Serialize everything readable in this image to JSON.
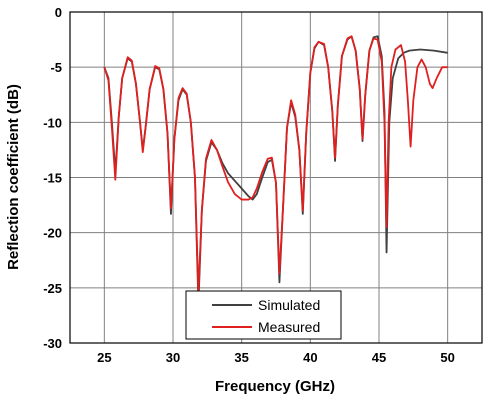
{
  "chart_data": {
    "type": "line",
    "xlabel": "Frequency (GHz)",
    "ylabel": "Reflection coefficient (dB)",
    "xlim": [
      22.5,
      52.5
    ],
    "ylim": [
      -30,
      0
    ],
    "xticks": [
      25,
      30,
      35,
      40,
      45,
      50
    ],
    "yticks": [
      0,
      -5,
      -10,
      -15,
      -20,
      -25,
      -30
    ],
    "grid": true,
    "legend_position": "bottom-center",
    "series": [
      {
        "name": "Simulated",
        "color": "#404040",
        "points": [
          [
            25.0,
            -5.0
          ],
          [
            25.3,
            -6.0
          ],
          [
            25.55,
            -10.0
          ],
          [
            25.8,
            -14.5
          ],
          [
            26.05,
            -9.5
          ],
          [
            26.3,
            -6.0
          ],
          [
            26.7,
            -4.2
          ],
          [
            27.0,
            -4.5
          ],
          [
            27.3,
            -6.5
          ],
          [
            27.6,
            -10.0
          ],
          [
            27.8,
            -12.5
          ],
          [
            28.0,
            -10.5
          ],
          [
            28.3,
            -7.0
          ],
          [
            28.7,
            -5.0
          ],
          [
            29.0,
            -5.2
          ],
          [
            29.3,
            -7.0
          ],
          [
            29.6,
            -11.0
          ],
          [
            29.85,
            -18.3
          ],
          [
            30.1,
            -11.5
          ],
          [
            30.4,
            -8.0
          ],
          [
            30.7,
            -7.0
          ],
          [
            31.0,
            -7.5
          ],
          [
            31.3,
            -10.0
          ],
          [
            31.6,
            -15.0
          ],
          [
            31.85,
            -26.5
          ],
          [
            32.1,
            -18.0
          ],
          [
            32.4,
            -13.5
          ],
          [
            32.8,
            -11.8
          ],
          [
            33.2,
            -12.5
          ],
          [
            33.6,
            -13.7
          ],
          [
            34.0,
            -14.6
          ],
          [
            34.5,
            -15.3
          ],
          [
            35.0,
            -16.0
          ],
          [
            35.5,
            -16.7
          ],
          [
            35.8,
            -17.0
          ],
          [
            36.1,
            -16.5
          ],
          [
            36.5,
            -15.0
          ],
          [
            36.9,
            -13.6
          ],
          [
            37.2,
            -13.4
          ],
          [
            37.5,
            -15.5
          ],
          [
            37.75,
            -24.5
          ],
          [
            38.0,
            -18.0
          ],
          [
            38.3,
            -10.5
          ],
          [
            38.6,
            -8.2
          ],
          [
            38.9,
            -9.5
          ],
          [
            39.2,
            -12.5
          ],
          [
            39.45,
            -18.3
          ],
          [
            39.7,
            -11.0
          ],
          [
            40.0,
            -5.5
          ],
          [
            40.3,
            -3.3
          ],
          [
            40.6,
            -2.7
          ],
          [
            41.0,
            -3.0
          ],
          [
            41.3,
            -5.0
          ],
          [
            41.6,
            -9.0
          ],
          [
            41.8,
            -13.5
          ],
          [
            42.0,
            -8.5
          ],
          [
            42.3,
            -4.0
          ],
          [
            42.7,
            -2.5
          ],
          [
            43.0,
            -2.2
          ],
          [
            43.3,
            -3.5
          ],
          [
            43.6,
            -7.0
          ],
          [
            43.8,
            -11.7
          ],
          [
            44.0,
            -7.5
          ],
          [
            44.3,
            -3.5
          ],
          [
            44.6,
            -2.3
          ],
          [
            44.9,
            -2.2
          ],
          [
            45.2,
            -4.0
          ],
          [
            45.4,
            -9.0
          ],
          [
            45.55,
            -21.8
          ],
          [
            45.75,
            -10.0
          ],
          [
            46.0,
            -6.0
          ],
          [
            46.4,
            -4.2
          ],
          [
            46.8,
            -3.7
          ],
          [
            47.2,
            -3.5
          ],
          [
            48.0,
            -3.4
          ],
          [
            49.0,
            -3.5
          ],
          [
            50.0,
            -3.7
          ]
        ]
      },
      {
        "name": "Measured",
        "color": "#e02020",
        "points": [
          [
            25.0,
            -5.0
          ],
          [
            25.3,
            -6.2
          ],
          [
            25.55,
            -10.5
          ],
          [
            25.8,
            -15.2
          ],
          [
            26.05,
            -9.5
          ],
          [
            26.3,
            -6.0
          ],
          [
            26.7,
            -4.1
          ],
          [
            27.0,
            -4.4
          ],
          [
            27.3,
            -6.5
          ],
          [
            27.6,
            -10.0
          ],
          [
            27.8,
            -12.7
          ],
          [
            28.0,
            -10.5
          ],
          [
            28.3,
            -7.0
          ],
          [
            28.7,
            -4.9
          ],
          [
            29.0,
            -5.1
          ],
          [
            29.3,
            -7.0
          ],
          [
            29.6,
            -11.0
          ],
          [
            29.85,
            -17.8
          ],
          [
            30.1,
            -11.5
          ],
          [
            30.4,
            -7.8
          ],
          [
            30.7,
            -6.9
          ],
          [
            31.0,
            -7.4
          ],
          [
            31.3,
            -10.0
          ],
          [
            31.6,
            -15.0
          ],
          [
            31.85,
            -25.5
          ],
          [
            32.1,
            -18.0
          ],
          [
            32.4,
            -13.3
          ],
          [
            32.8,
            -11.6
          ],
          [
            33.2,
            -12.5
          ],
          [
            33.6,
            -14.0
          ],
          [
            34.0,
            -15.4
          ],
          [
            34.5,
            -16.5
          ],
          [
            35.0,
            -17.0
          ],
          [
            35.5,
            -17.0
          ],
          [
            35.8,
            -16.8
          ],
          [
            36.1,
            -16.0
          ],
          [
            36.5,
            -14.5
          ],
          [
            36.9,
            -13.3
          ],
          [
            37.2,
            -13.2
          ],
          [
            37.5,
            -15.5
          ],
          [
            37.75,
            -23.7
          ],
          [
            38.0,
            -18.0
          ],
          [
            38.3,
            -10.5
          ],
          [
            38.6,
            -8.0
          ],
          [
            38.9,
            -9.3
          ],
          [
            39.2,
            -12.5
          ],
          [
            39.45,
            -18.0
          ],
          [
            39.7,
            -11.0
          ],
          [
            40.0,
            -5.5
          ],
          [
            40.3,
            -3.2
          ],
          [
            40.6,
            -2.7
          ],
          [
            41.0,
            -2.9
          ],
          [
            41.3,
            -5.0
          ],
          [
            41.6,
            -9.0
          ],
          [
            41.8,
            -13.2
          ],
          [
            42.0,
            -8.5
          ],
          [
            42.3,
            -4.0
          ],
          [
            42.7,
            -2.4
          ],
          [
            43.0,
            -2.2
          ],
          [
            43.3,
            -3.5
          ],
          [
            43.6,
            -7.0
          ],
          [
            43.8,
            -11.5
          ],
          [
            44.0,
            -7.5
          ],
          [
            44.3,
            -3.5
          ],
          [
            44.6,
            -2.4
          ],
          [
            44.9,
            -2.5
          ],
          [
            45.2,
            -4.5
          ],
          [
            45.4,
            -10.0
          ],
          [
            45.55,
            -19.5
          ],
          [
            45.7,
            -10.0
          ],
          [
            45.9,
            -5.0
          ],
          [
            46.2,
            -3.4
          ],
          [
            46.6,
            -3.0
          ],
          [
            46.9,
            -4.5
          ],
          [
            47.1,
            -8.0
          ],
          [
            47.3,
            -12.2
          ],
          [
            47.5,
            -8.0
          ],
          [
            47.8,
            -5.0
          ],
          [
            48.1,
            -4.3
          ],
          [
            48.4,
            -5.0
          ],
          [
            48.7,
            -6.5
          ],
          [
            48.9,
            -6.9
          ],
          [
            49.2,
            -6.0
          ],
          [
            49.6,
            -5.0
          ],
          [
            50.0,
            -5.0
          ]
        ]
      }
    ]
  }
}
